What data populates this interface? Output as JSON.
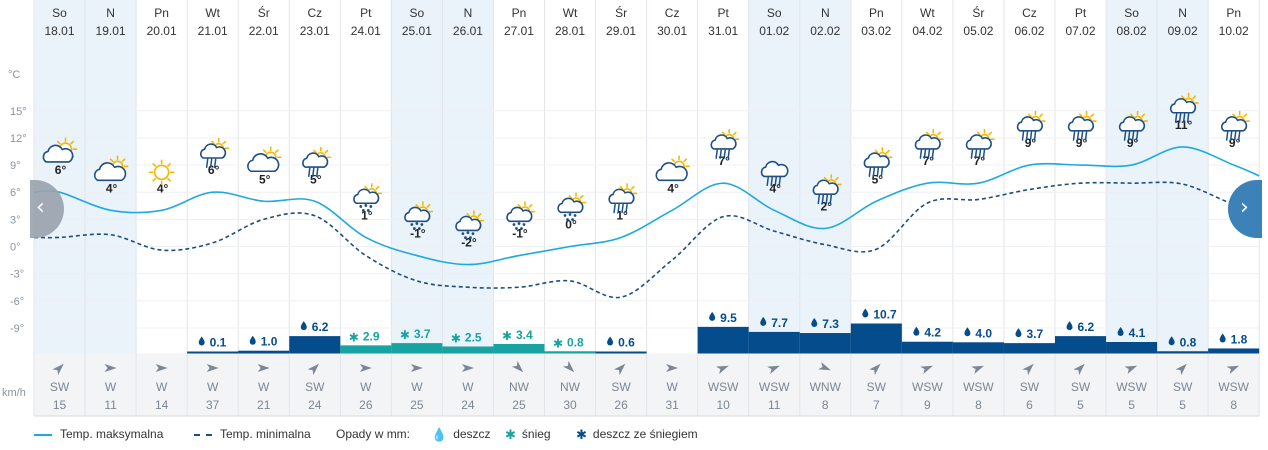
{
  "chart_data": {
    "type": "line",
    "days": [
      {
        "day": "So",
        "date": "18.01",
        "icon": "sun-cloud-icon",
        "tmax": 6,
        "tmin": 1,
        "precip_type": "none",
        "precip": null,
        "wind_dir": "SW",
        "wind_speed": 15,
        "weekend": true
      },
      {
        "day": "N",
        "date": "19.01",
        "icon": "cloud-sun-icon",
        "tmax": 4,
        "tmin": 1.3,
        "precip_type": "none",
        "precip": null,
        "wind_dir": "W",
        "wind_speed": 11,
        "weekend": true
      },
      {
        "day": "Pn",
        "date": "20.01",
        "icon": "sun-icon",
        "tmax": 4,
        "tmin": -0.4,
        "precip_type": "none",
        "precip": null,
        "wind_dir": "W",
        "wind_speed": 14,
        "weekend": false
      },
      {
        "day": "Wt",
        "date": "21.01",
        "icon": "sun-cloud-drizzle-icon",
        "tmax": 6,
        "tmin": 0.4,
        "precip_type": "rain",
        "precip": "0.1",
        "wind_dir": "W",
        "wind_speed": 37,
        "weekend": false
      },
      {
        "day": "Śr",
        "date": "22.01",
        "icon": "cloud-sun-icon",
        "tmax": 5,
        "tmin": 3,
        "precip_type": "rain",
        "precip": "1.0",
        "wind_dir": "W",
        "wind_speed": 21,
        "weekend": false
      },
      {
        "day": "Cz",
        "date": "23.01",
        "icon": "sun-cloud-drizzle-icon",
        "tmax": 5,
        "tmin": 3.4,
        "precip_type": "rain",
        "precip": "6.2",
        "wind_dir": "SW",
        "wind_speed": 24,
        "weekend": false
      },
      {
        "day": "Pt",
        "date": "24.01",
        "icon": "sun-cloud-snow-icon",
        "tmax": 1,
        "tmin": -1,
        "precip_type": "snow",
        "precip": "2.9",
        "wind_dir": "W",
        "wind_speed": 26,
        "weekend": false
      },
      {
        "day": "So",
        "date": "25.01",
        "icon": "sun-cloud-snow-icon",
        "tmax": -1,
        "tmin": -3.8,
        "precip_type": "snow",
        "precip": "3.7",
        "wind_dir": "W",
        "wind_speed": 25,
        "weekend": true
      },
      {
        "day": "N",
        "date": "26.01",
        "icon": "sun-cloud-snow-icon",
        "tmax": -2,
        "tmin": -4.5,
        "precip_type": "snow",
        "precip": "2.5",
        "wind_dir": "W",
        "wind_speed": 24,
        "weekend": true
      },
      {
        "day": "Pn",
        "date": "27.01",
        "icon": "sun-cloud-snow-icon",
        "tmax": -1,
        "tmin": -4.5,
        "precip_type": "snow",
        "precip": "3.4",
        "wind_dir": "NW",
        "wind_speed": 25,
        "weekend": false
      },
      {
        "day": "Wt",
        "date": "28.01",
        "icon": "sun-cloud-snow-icon",
        "tmax": 0,
        "tmin": -3.8,
        "precip_type": "snow",
        "precip": "0.8",
        "wind_dir": "NW",
        "wind_speed": 30,
        "weekend": false
      },
      {
        "day": "Śr",
        "date": "29.01",
        "icon": "sun-cloud-rain-icon",
        "tmax": 1,
        "tmin": -5.6,
        "precip_type": "rain",
        "precip": "0.6",
        "wind_dir": "SW",
        "wind_speed": 26,
        "weekend": false
      },
      {
        "day": "Cz",
        "date": "30.01",
        "icon": "cloud-sun-icon",
        "tmax": 4,
        "tmin": -1.5,
        "precip_type": "none",
        "precip": null,
        "wind_dir": "W",
        "wind_speed": 31,
        "weekend": false
      },
      {
        "day": "Pt",
        "date": "31.01",
        "icon": "sun-cloud-rain-icon",
        "tmax": 7,
        "tmin": 3.3,
        "precip_type": "rain",
        "precip": "9.5",
        "wind_dir": "WSW",
        "wind_speed": 10,
        "weekend": false
      },
      {
        "day": "So",
        "date": "01.02",
        "icon": "cloud-rain-icon",
        "tmax": 4,
        "tmin": 1.7,
        "precip_type": "rain",
        "precip": "7.7",
        "wind_dir": "WSW",
        "wind_speed": 11,
        "weekend": true
      },
      {
        "day": "N",
        "date": "02.02",
        "icon": "sun-cloud-rain-icon",
        "tmax": 2,
        "tmin": 0.2,
        "precip_type": "rain",
        "precip": "7.3",
        "wind_dir": "WNW",
        "wind_speed": 8,
        "weekend": true
      },
      {
        "day": "Pn",
        "date": "03.02",
        "icon": "sun-cloud-rain-icon",
        "tmax": 5,
        "tmin": -0.3,
        "precip_type": "rain",
        "precip": "10.7",
        "wind_dir": "SW",
        "wind_speed": 7,
        "weekend": false
      },
      {
        "day": "Wt",
        "date": "04.02",
        "icon": "sun-cloud-rain-icon",
        "tmax": 7,
        "tmin": 4.8,
        "precip_type": "rain",
        "precip": "4.2",
        "wind_dir": "WSW",
        "wind_speed": 9,
        "weekend": false
      },
      {
        "day": "Śr",
        "date": "05.02",
        "icon": "sun-cloud-rain-icon",
        "tmax": 7,
        "tmin": 5.2,
        "precip_type": "rain",
        "precip": "4.0",
        "wind_dir": "WSW",
        "wind_speed": 8,
        "weekend": false
      },
      {
        "day": "Cz",
        "date": "06.02",
        "icon": "sun-cloud-rain-icon",
        "tmax": 9,
        "tmin": 6.3,
        "precip_type": "rain",
        "precip": "3.7",
        "wind_dir": "SW",
        "wind_speed": 6,
        "weekend": false
      },
      {
        "day": "Pt",
        "date": "07.02",
        "icon": "sun-cloud-rain-icon",
        "tmax": 9,
        "tmin": 7,
        "precip_type": "rain",
        "precip": "6.2",
        "wind_dir": "SW",
        "wind_speed": 5,
        "weekend": false
      },
      {
        "day": "So",
        "date": "08.02",
        "icon": "sun-cloud-rain-icon",
        "tmax": 9,
        "tmin": 7,
        "precip_type": "rain",
        "precip": "4.1",
        "wind_dir": "WSW",
        "wind_speed": 5,
        "weekend": true
      },
      {
        "day": "N",
        "date": "09.02",
        "icon": "sun-cloud-rain-icon",
        "tmax": 11,
        "tmin": 6.9,
        "precip_type": "rain",
        "precip": "0.8",
        "wind_dir": "SW",
        "wind_speed": 5,
        "weekend": true
      },
      {
        "day": "Pn",
        "date": "10.02",
        "icon": "sun-cloud-rain-icon",
        "tmax": 9,
        "tmin": 4.7,
        "precip_type": "rain",
        "precip": "1.8",
        "wind_dir": "WSW",
        "wind_speed": 8,
        "weekend": false
      }
    ],
    "y_axis": {
      "unit": "°C",
      "ticks": [
        "15°",
        "12°",
        "9°",
        "6°",
        "3°",
        "0°",
        "-3°",
        "-6°",
        "-9°"
      ],
      "ylim": [
        -9,
        15
      ]
    },
    "precip_max_mm": 10.7,
    "wind_unit": "km/h",
    "legend": {
      "tmax": "Temp. maksymalna",
      "tmin": "Temp. minimalna",
      "precip_title": "Opady w mm:",
      "rain": "deszcz",
      "snow": "śnieg",
      "mixed": "deszcz ze śniegiem"
    },
    "colors": {
      "tmax_line": "#1fa9df",
      "tmin_line": "#1e4d80",
      "rain_bar": "#044c8c",
      "snow_bar": "#17a3a1",
      "weekend_bg": "#eaf2fa",
      "arrow": "#7b8794"
    }
  }
}
